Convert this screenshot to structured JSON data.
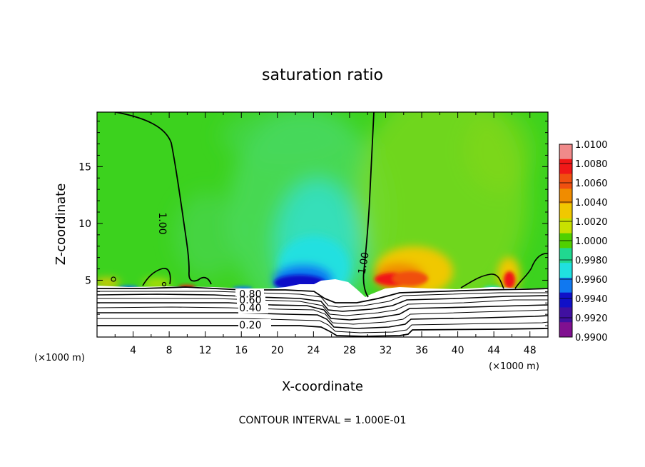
{
  "chart_data": {
    "type": "heatmap",
    "title": "saturation ratio",
    "xlabel": "X-coordinate",
    "ylabel": "Z-coordinate",
    "x_unit": "(×1000 m)",
    "x_unit_right": "(×1000 m)",
    "xlim": [
      0,
      50
    ],
    "ylim": [
      0,
      19.8
    ],
    "x_ticks": [
      4,
      8,
      12,
      16,
      20,
      24,
      28,
      32,
      36,
      40,
      44,
      48
    ],
    "y_ticks": [
      5,
      10,
      15
    ],
    "colorbar": {
      "levels": [
        "1.0100",
        "1.0080",
        "1.0060",
        "1.0040",
        "1.0020",
        "1.0000",
        "0.9980",
        "0.9960",
        "0.9940",
        "0.9920",
        "0.9900"
      ],
      "colors": [
        "#f08a8a",
        "#f01818",
        "#f05010",
        "#f08c00",
        "#f0c800",
        "#c8e000",
        "#50d000",
        "#20d890",
        "#20e0e0",
        "#1078f0",
        "#1010c8",
        "#4010a0",
        "#801090"
      ]
    },
    "contour_labels": [
      {
        "text": "1.00",
        "x": 7.2,
        "y": 10.0,
        "rotate": 90
      },
      {
        "text": "1.00",
        "x": 29.6,
        "y": 6.5,
        "rotate": -80
      },
      {
        "text": "0.80",
        "x": 17.0,
        "y": 3.75,
        "rotate": 0
      },
      {
        "text": "0.60",
        "x": 17.0,
        "y": 3.2,
        "rotate": 0
      },
      {
        "text": "0.40",
        "x": 17.0,
        "y": 2.5,
        "rotate": 0
      },
      {
        "text": "0.20",
        "x": 17.0,
        "y": 1.0,
        "rotate": 0
      }
    ],
    "contour_interval_text": "CONTOUR INTERVAL = 1.000E-01"
  },
  "colors": {
    "background_field": "#3cd21e",
    "white": "#ffffff",
    "line": "#000000"
  }
}
